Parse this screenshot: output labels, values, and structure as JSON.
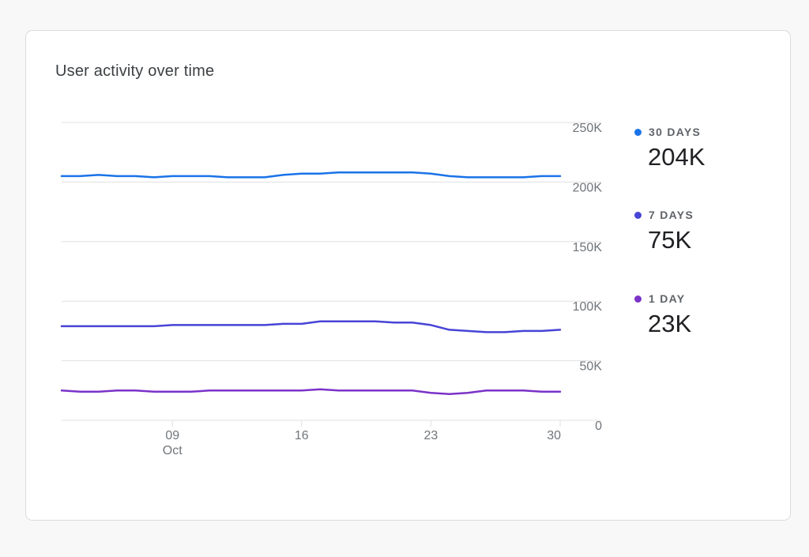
{
  "title": "User activity over time",
  "colors": {
    "thirty_days": "#1a73e8",
    "seven_days": "#4744d6",
    "one_day": "#7b32c8",
    "grid": "#e0e0e0",
    "axis_text": "#70757a"
  },
  "legend": [
    {
      "label": "30 DAYS",
      "value": "204K"
    },
    {
      "label": "7 DAYS",
      "value": "75K"
    },
    {
      "label": "1 DAY",
      "value": "23K"
    }
  ],
  "chart_data": {
    "type": "line",
    "x_tick_labels": [
      {
        "day": 9,
        "line1": "09",
        "line2": "Oct"
      },
      {
        "day": 16,
        "line1": "16",
        "line2": ""
      },
      {
        "day": 23,
        "line1": "23",
        "line2": ""
      },
      {
        "day": 30,
        "line1": "30",
        "line2": ""
      }
    ],
    "y_ticks": [
      {
        "value": 0,
        "label": "0"
      },
      {
        "value": 50000,
        "label": "50K"
      },
      {
        "value": 100000,
        "label": "100K"
      },
      {
        "value": 150000,
        "label": "150K"
      },
      {
        "value": 200000,
        "label": "200K"
      },
      {
        "value": 250000,
        "label": "250K"
      }
    ],
    "ylim": [
      0,
      250000
    ],
    "xlim": [
      3,
      30
    ],
    "x": [
      3,
      4,
      5,
      6,
      7,
      8,
      9,
      10,
      11,
      12,
      13,
      14,
      15,
      16,
      17,
      18,
      19,
      20,
      21,
      22,
      23,
      24,
      25,
      26,
      27,
      28,
      29,
      30
    ],
    "series": [
      {
        "name": "30 DAYS",
        "values": [
          205000,
          205000,
          206000,
          205000,
          205000,
          204000,
          205000,
          205000,
          205000,
          204000,
          204000,
          204000,
          206000,
          207000,
          207000,
          208000,
          208000,
          208000,
          208000,
          208000,
          207000,
          205000,
          204000,
          204000,
          204000,
          204000,
          205000,
          205000
        ]
      },
      {
        "name": "7 DAYS",
        "values": [
          79000,
          79000,
          79000,
          79000,
          79000,
          79000,
          80000,
          80000,
          80000,
          80000,
          80000,
          80000,
          81000,
          81000,
          83000,
          83000,
          83000,
          83000,
          82000,
          82000,
          80000,
          76000,
          75000,
          74000,
          74000,
          75000,
          75000,
          76000
        ]
      },
      {
        "name": "1 DAY",
        "values": [
          25000,
          24000,
          24000,
          25000,
          25000,
          24000,
          24000,
          24000,
          25000,
          25000,
          25000,
          25000,
          25000,
          25000,
          26000,
          25000,
          25000,
          25000,
          25000,
          25000,
          23000,
          22000,
          23000,
          25000,
          25000,
          25000,
          24000,
          24000
        ]
      }
    ],
    "grid": true,
    "legend_position": "right"
  }
}
